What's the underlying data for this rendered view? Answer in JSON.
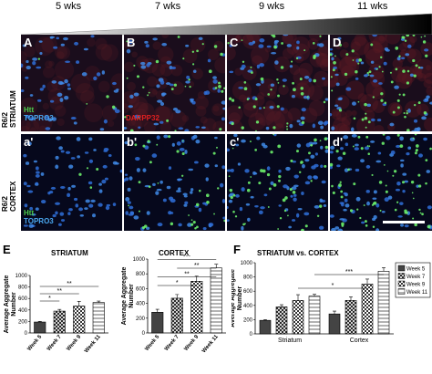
{
  "weeks": [
    "5 wks",
    "7 wks",
    "9 wks",
    "11 wks"
  ],
  "rows": [
    {
      "label_line1": "R6/2",
      "label_line2": "STRIATUM",
      "stain_htt": "Htt",
      "stain_topro": "TOPRO3",
      "stain_third": "DARPP32",
      "panels": [
        "A",
        "B",
        "C",
        "D"
      ]
    },
    {
      "label_line1": "R6/2",
      "label_line2": "CORTEX",
      "stain_htt": "Htt",
      "stain_topro": "TOPRO3",
      "stain_third": "",
      "panels": [
        "a'",
        "b'",
        "c'",
        "d'"
      ]
    }
  ],
  "colors": {
    "htt": "#4cd04c",
    "topro": "#3aa0e8",
    "darpp": "#e02020"
  },
  "chart_data": [
    {
      "letter": "E",
      "type": "bar",
      "title": "STRIATUM",
      "ylabel": "Average Aggregate Number",
      "categories": [
        "Week 5",
        "Week 7",
        "Week 9",
        "Week 11"
      ],
      "values": [
        190,
        380,
        470,
        530
      ],
      "errors": [
        12,
        30,
        80,
        25
      ],
      "ylim": [
        0,
        1000
      ],
      "yticks": [
        "0",
        "200",
        "400",
        "600",
        "800",
        "1000"
      ],
      "patterns": [
        "solid",
        "cross",
        "checker",
        "hlines"
      ],
      "significance": [
        {
          "from": 0,
          "to": 1,
          "label": "*"
        },
        {
          "from": 0,
          "to": 2,
          "label": "**"
        },
        {
          "from": 0,
          "to": 3,
          "label": "**"
        }
      ]
    },
    {
      "letter": "",
      "type": "bar",
      "title": "CORTEX",
      "ylabel": "Average Aggregate Number",
      "categories": [
        "Week 5",
        "Week 7",
        "Week 9",
        "Week 11"
      ],
      "values": [
        280,
        470,
        700,
        880
      ],
      "errors": [
        40,
        50,
        70,
        50
      ],
      "ylim": [
        0,
        1000
      ],
      "yticks": [
        "0",
        "200",
        "400",
        "600",
        "800",
        "1000"
      ],
      "patterns": [
        "solid",
        "cross",
        "checker",
        "hlines"
      ],
      "significance": [
        {
          "from": 0,
          "to": 2,
          "label": "*"
        },
        {
          "from": 0,
          "to": 3,
          "label": "**"
        },
        {
          "from": 1,
          "to": 3,
          "label": "**"
        },
        {
          "from": 0,
          "to": 3,
          "label": "***"
        }
      ]
    },
    {
      "letter": "F",
      "type": "bar",
      "title": "STRIATUM vs. CORTEX",
      "ylabel": "Average Aggregate Number",
      "categories": [
        "Striatum",
        "Cortex"
      ],
      "series": [
        {
          "name": "Week 5",
          "values": [
            190,
            280
          ],
          "errors": [
            12,
            40
          ]
        },
        {
          "name": "Week 7",
          "values": [
            380,
            470
          ],
          "errors": [
            30,
            50
          ]
        },
        {
          "name": "Week 9",
          "values": [
            470,
            700
          ],
          "errors": [
            80,
            70
          ]
        },
        {
          "name": "Week 11",
          "values": [
            530,
            880
          ],
          "errors": [
            25,
            50
          ]
        }
      ],
      "ylim": [
        0,
        1000
      ],
      "yticks": [
        "0",
        "200",
        "400",
        "600",
        "800",
        "1000"
      ],
      "legend": "top-right",
      "significance": [
        {
          "from": [
            0,
            2
          ],
          "to": [
            1,
            2
          ],
          "label": "*"
        },
        {
          "from": [
            0,
            3
          ],
          "to": [
            1,
            3
          ],
          "label": "***"
        }
      ]
    }
  ]
}
